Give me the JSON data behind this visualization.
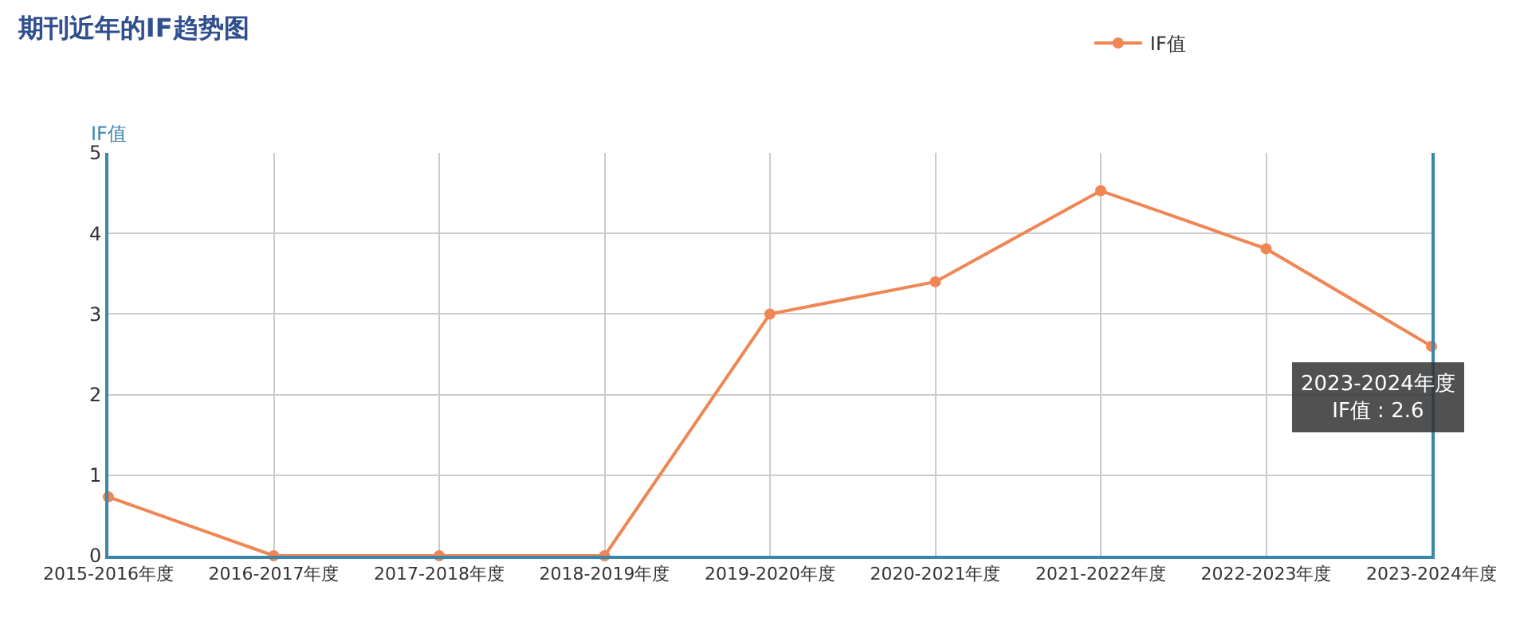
{
  "chart_data": {
    "type": "line",
    "title": "期刊近年的IF趋势图",
    "ylabel": "IF值",
    "categories": [
      "2015-2016年度",
      "2016-2017年度",
      "2017-2018年度",
      "2018-2019年度",
      "2019-2020年度",
      "2020-2021年度",
      "2021-2022年度",
      "2022-2023年度",
      "2023-2024年度"
    ],
    "series": [
      {
        "name": "IF值",
        "color": "#ef8654",
        "values": [
          0.73,
          0,
          0,
          0,
          3.0,
          3.4,
          4.53,
          3.81,
          2.6
        ]
      }
    ],
    "ylim": [
      0,
      5
    ],
    "yticks": [
      0,
      1,
      2,
      3,
      4,
      5
    ],
    "grid": true,
    "legend": "top right",
    "marker": "circle",
    "line_style": "solid",
    "annotations": [
      {
        "text": "2023-2024年度\nIF值 : 2.6",
        "x": "2023-2024年度",
        "y": 2.6
      }
    ]
  }
}
